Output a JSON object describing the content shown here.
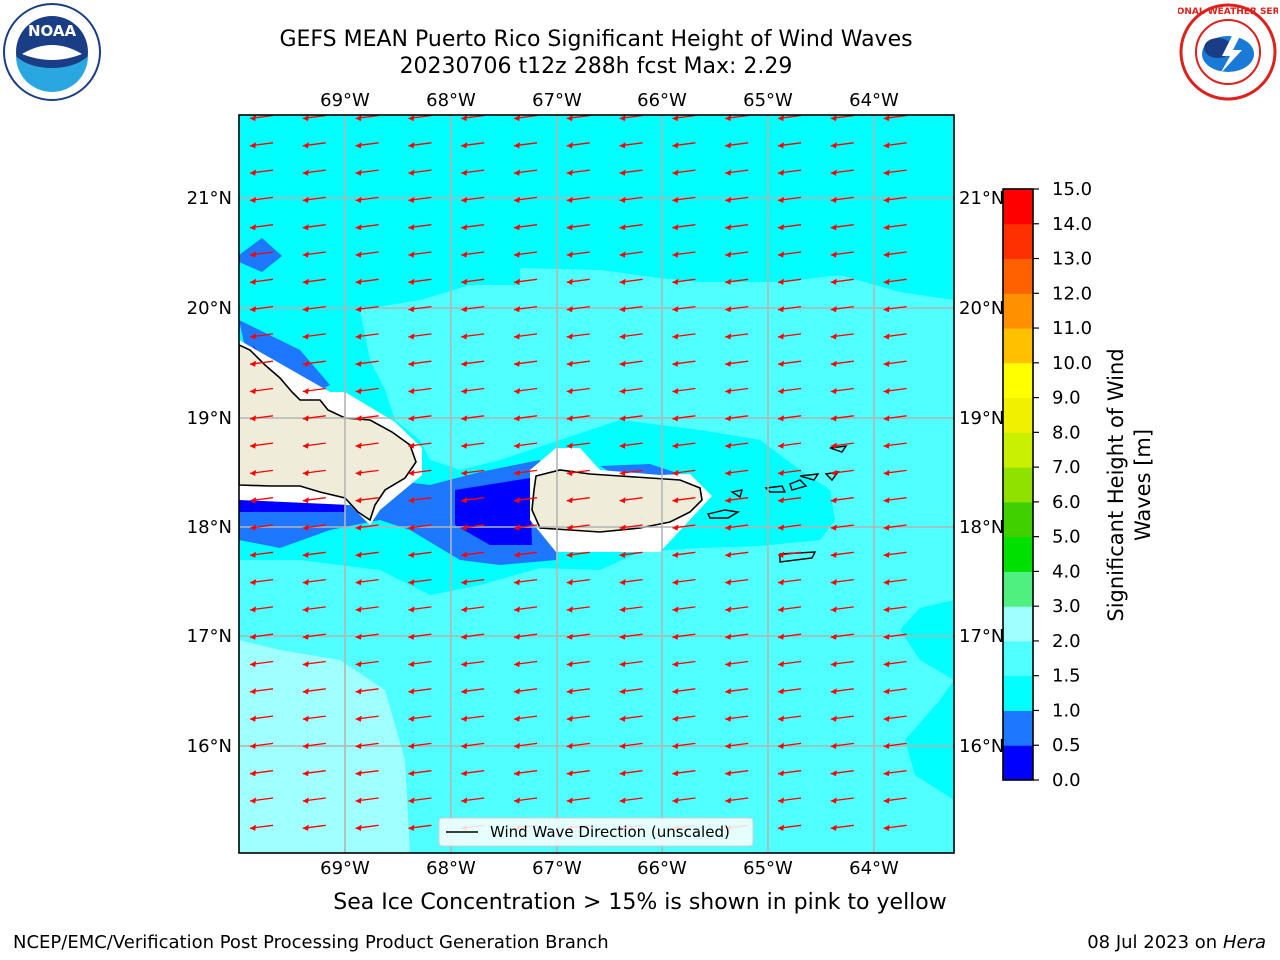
{
  "header": {
    "title_line1": "GEFS MEAN Puerto Rico Significant Height of Wind Waves",
    "title_line2": "20230706 t12z 288h fcst   Max: 2.29"
  },
  "logos": {
    "left": {
      "name": "noaa-logo",
      "text": "NOAA"
    },
    "right": {
      "name": "nws-logo",
      "text": "NATIONAL WEATHER SERVICE"
    }
  },
  "map": {
    "lon_labels": [
      "69°W",
      "68°W",
      "67°W",
      "66°W",
      "65°W",
      "64°W"
    ],
    "lat_labels": [
      "21°N",
      "20°N",
      "19°N",
      "18°N",
      "17°N",
      "16°N"
    ],
    "legend_label": "Wind Wave Direction (unscaled)",
    "arrow_color": "#ff0000",
    "arrow_direction": "toward west-southwest"
  },
  "colorbar": {
    "label_line1": "Significant Height of Wind",
    "label_line2": "Waves [m]",
    "tick_labels": [
      "0.0",
      "0.5",
      "1.0",
      "1.5",
      "2.0",
      "3.0",
      "4.0",
      "5.0",
      "6.0",
      "7.0",
      "8.0",
      "9.0",
      "10.0",
      "11.0",
      "12.0",
      "13.0",
      "14.0",
      "15.0"
    ],
    "colors": [
      "#0000ff",
      "#1e78ff",
      "#00ffff",
      "#50ffff",
      "#a0ffff",
      "#50f080",
      "#00e000",
      "#40d000",
      "#90e000",
      "#c8f000",
      "#f0f000",
      "#ffff00",
      "#ffc000",
      "#ff9000",
      "#ff6000",
      "#ff3000",
      "#ff0000"
    ]
  },
  "caption": "Sea Ice Concentration > 15% is shown in pink to yellow",
  "footer": {
    "left": "NCEP/EMC/Verification Post Processing Product Generation Branch",
    "date": "08 Jul 2023 on ",
    "host": "Hera"
  }
}
